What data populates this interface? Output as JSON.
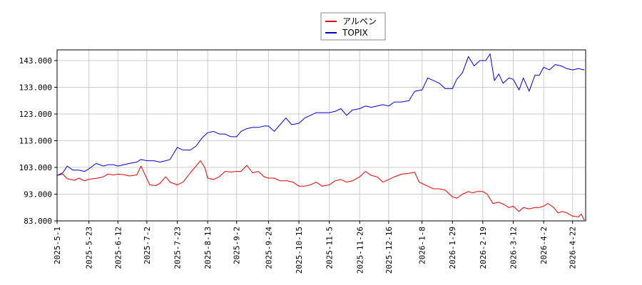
{
  "chart_data": {
    "type": "line",
    "title": "",
    "xlabel": "",
    "ylabel": "",
    "ylim": [
      83.0,
      147.0
    ],
    "y_ticks": [
      "83.000",
      "93.000",
      "103.000",
      "113.000",
      "123.000",
      "133.000",
      "143.000"
    ],
    "x_ticks": [
      "2025-5-1",
      "2025-5-23",
      "2025-6-12",
      "2025-7-2",
      "2025-7-23",
      "2025-8-13",
      "2025-9-2",
      "2025-9-24",
      "2025-10-15",
      "2025-11-5",
      "2025-11-26",
      "2025-12-16",
      "2026-1-8",
      "2026-1-29",
      "2026-2-19",
      "2026-3-12",
      "2026-4-2",
      "2026-4-22"
    ],
    "x_range": [
      "2025-5-1",
      "2026-5-1"
    ],
    "grid": true,
    "legend_position": "top-center",
    "series": [
      {
        "name": "アルペン",
        "color": "#dd0000",
        "points": [
          [
            "2025-5-1",
            100.0
          ],
          [
            "2025-5-5",
            100.5
          ],
          [
            "2025-5-8",
            98.8
          ],
          [
            "2025-5-13",
            98.2
          ],
          [
            "2025-5-16",
            99.0
          ],
          [
            "2025-5-20",
            98.0
          ],
          [
            "2025-5-23",
            98.6
          ],
          [
            "2025-5-28",
            98.9
          ],
          [
            "2025-6-2",
            99.5
          ],
          [
            "2025-6-5",
            100.5
          ],
          [
            "2025-6-9",
            100.2
          ],
          [
            "2025-6-12",
            100.5
          ],
          [
            "2025-6-16",
            100.3
          ],
          [
            "2025-6-20",
            99.8
          ],
          [
            "2025-6-25",
            100.2
          ],
          [
            "2025-6-28",
            103.5
          ],
          [
            "2025-7-1",
            100.0
          ],
          [
            "2025-7-4",
            96.5
          ],
          [
            "2025-7-8",
            96.2
          ],
          [
            "2025-7-11",
            97.0
          ],
          [
            "2025-7-15",
            99.5
          ],
          [
            "2025-7-18",
            97.5
          ],
          [
            "2025-7-23",
            96.5
          ],
          [
            "2025-7-27",
            97.5
          ],
          [
            "2025-8-1",
            101.0
          ],
          [
            "2025-8-5",
            103.5
          ],
          [
            "2025-8-8",
            105.5
          ],
          [
            "2025-8-11",
            103.0
          ],
          [
            "2025-8-13",
            99.0
          ],
          [
            "2025-8-17",
            98.5
          ],
          [
            "2025-8-21",
            99.5
          ],
          [
            "2025-8-25",
            101.5
          ],
          [
            "2025-8-29",
            101.3
          ],
          [
            "2025-9-2",
            101.5
          ],
          [
            "2025-9-5",
            101.5
          ],
          [
            "2025-9-9",
            103.8
          ],
          [
            "2025-9-13",
            101.0
          ],
          [
            "2025-9-17",
            101.5
          ],
          [
            "2025-9-21",
            99.5
          ],
          [
            "2025-9-24",
            99.0
          ],
          [
            "2025-9-28",
            99.0
          ],
          [
            "2025-10-2",
            98.0
          ],
          [
            "2025-10-7",
            98.0
          ],
          [
            "2025-10-11",
            97.5
          ],
          [
            "2025-10-15",
            96.0
          ],
          [
            "2025-10-19",
            96.0
          ],
          [
            "2025-10-23",
            96.5
          ],
          [
            "2025-10-27",
            97.5
          ],
          [
            "2025-10-31",
            96.0
          ],
          [
            "2025-11-5",
            96.5
          ],
          [
            "2025-11-9",
            98.0
          ],
          [
            "2025-11-13",
            98.5
          ],
          [
            "2025-11-17",
            97.5
          ],
          [
            "2025-11-21",
            98.0
          ],
          [
            "2025-11-26",
            99.5
          ],
          [
            "2025-11-30",
            101.5
          ],
          [
            "2025-12-4",
            100.0
          ],
          [
            "2025-12-8",
            99.5
          ],
          [
            "2025-12-12",
            97.5
          ],
          [
            "2025-12-16",
            98.5
          ],
          [
            "2025-12-20",
            99.5
          ],
          [
            "2025-12-25",
            100.5
          ],
          [
            "2025-12-30",
            100.8
          ],
          [
            "2026-1-3",
            101.2
          ],
          [
            "2026-1-6",
            97.5
          ],
          [
            "2026-1-8",
            97.0
          ],
          [
            "2026-1-12",
            96.0
          ],
          [
            "2026-1-16",
            95.0
          ],
          [
            "2026-1-20",
            95.0
          ],
          [
            "2026-1-24",
            94.5
          ],
          [
            "2026-1-29",
            92.0
          ],
          [
            "2026-2-1",
            91.5
          ],
          [
            "2026-2-5",
            93.0
          ],
          [
            "2026-2-9",
            94.0
          ],
          [
            "2026-2-12",
            93.5
          ],
          [
            "2026-2-15",
            94.0
          ],
          [
            "2026-2-19",
            94.0
          ],
          [
            "2026-2-22",
            93.0
          ],
          [
            "2026-2-26",
            89.5
          ],
          [
            "2026-3-2",
            90.0
          ],
          [
            "2026-3-6",
            89.0
          ],
          [
            "2026-3-9",
            88.0
          ],
          [
            "2026-3-12",
            88.5
          ],
          [
            "2026-3-16",
            86.5
          ],
          [
            "2026-3-19",
            88.0
          ],
          [
            "2026-3-23",
            87.5
          ],
          [
            "2026-3-27",
            88.0
          ],
          [
            "2026-3-30",
            88.0
          ],
          [
            "2026-4-2",
            88.5
          ],
          [
            "2026-4-5",
            89.5
          ],
          [
            "2026-4-9",
            88.0
          ],
          [
            "2026-4-12",
            86.0
          ],
          [
            "2026-4-15",
            86.5
          ],
          [
            "2026-4-18",
            86.0
          ],
          [
            "2026-4-22",
            84.8
          ],
          [
            "2026-4-26",
            84.5
          ],
          [
            "2026-4-28",
            85.5
          ],
          [
            "2026-4-30",
            83.3
          ]
        ]
      },
      {
        "name": "TOPIX",
        "color": "#0000cc",
        "points": [
          [
            "2025-5-1",
            100.0
          ],
          [
            "2025-5-5",
            101.0
          ],
          [
            "2025-5-8",
            103.5
          ],
          [
            "2025-5-12",
            102.0
          ],
          [
            "2025-5-16",
            102.0
          ],
          [
            "2025-5-20",
            101.5
          ],
          [
            "2025-5-23",
            102.5
          ],
          [
            "2025-5-28",
            104.5
          ],
          [
            "2025-6-2",
            103.5
          ],
          [
            "2025-6-5",
            104.0
          ],
          [
            "2025-6-9",
            104.0
          ],
          [
            "2025-6-12",
            103.5
          ],
          [
            "2025-6-16",
            104.0
          ],
          [
            "2025-6-20",
            104.5
          ],
          [
            "2025-6-25",
            105.0
          ],
          [
            "2025-6-28",
            106.0
          ],
          [
            "2025-7-2",
            105.5
          ],
          [
            "2025-7-7",
            105.5
          ],
          [
            "2025-7-11",
            105.0
          ],
          [
            "2025-7-15",
            105.5
          ],
          [
            "2025-7-18",
            106.0
          ],
          [
            "2025-7-23",
            110.5
          ],
          [
            "2025-7-27",
            109.5
          ],
          [
            "2025-8-1",
            109.5
          ],
          [
            "2025-8-5",
            111.0
          ],
          [
            "2025-8-9",
            114.0
          ],
          [
            "2025-8-13",
            116.0
          ],
          [
            "2025-8-17",
            116.5
          ],
          [
            "2025-8-21",
            115.5
          ],
          [
            "2025-8-25",
            115.5
          ],
          [
            "2025-8-29",
            114.5
          ],
          [
            "2025-9-2",
            114.5
          ],
          [
            "2025-9-5",
            116.5
          ],
          [
            "2025-9-9",
            117.5
          ],
          [
            "2025-9-13",
            118.0
          ],
          [
            "2025-9-17",
            118.0
          ],
          [
            "2025-9-21",
            118.5
          ],
          [
            "2025-9-24",
            118.5
          ],
          [
            "2025-9-28",
            116.5
          ],
          [
            "2025-10-2",
            119.0
          ],
          [
            "2025-10-6",
            121.5
          ],
          [
            "2025-10-10",
            119.0
          ],
          [
            "2025-10-15",
            119.5
          ],
          [
            "2025-10-19",
            121.5
          ],
          [
            "2025-10-23",
            122.5
          ],
          [
            "2025-10-27",
            123.5
          ],
          [
            "2025-10-31",
            123.5
          ],
          [
            "2025-11-5",
            123.5
          ],
          [
            "2025-11-9",
            124.0
          ],
          [
            "2025-11-13",
            125.0
          ],
          [
            "2025-11-17",
            122.5
          ],
          [
            "2025-11-21",
            124.5
          ],
          [
            "2025-11-26",
            125.0
          ],
          [
            "2025-11-30",
            126.0
          ],
          [
            "2025-12-4",
            125.5
          ],
          [
            "2025-12-8",
            126.0
          ],
          [
            "2025-12-12",
            126.5
          ],
          [
            "2025-12-16",
            126.0
          ],
          [
            "2025-12-20",
            127.5
          ],
          [
            "2025-12-25",
            127.5
          ],
          [
            "2025-12-30",
            128.0
          ],
          [
            "2026-1-3",
            131.5
          ],
          [
            "2026-1-8",
            132.0
          ],
          [
            "2026-1-12",
            136.5
          ],
          [
            "2026-1-16",
            135.5
          ],
          [
            "2026-1-20",
            134.5
          ],
          [
            "2026-1-24",
            132.5
          ],
          [
            "2026-1-29",
            132.5
          ],
          [
            "2026-2-1",
            136.0
          ],
          [
            "2026-2-5",
            138.5
          ],
          [
            "2026-2-9",
            144.5
          ],
          [
            "2026-2-13",
            141.0
          ],
          [
            "2026-2-17",
            143.0
          ],
          [
            "2026-2-21",
            143.0
          ],
          [
            "2026-2-24",
            145.5
          ],
          [
            "2026-2-27",
            135.5
          ],
          [
            "2026-3-2",
            138.0
          ],
          [
            "2026-3-5",
            134.5
          ],
          [
            "2026-3-9",
            136.5
          ],
          [
            "2026-3-12",
            136.0
          ],
          [
            "2026-3-16",
            132.0
          ],
          [
            "2026-3-19",
            136.5
          ],
          [
            "2026-3-23",
            131.5
          ],
          [
            "2026-3-27",
            137.5
          ],
          [
            "2026-3-30",
            137.5
          ],
          [
            "2026-4-2",
            140.5
          ],
          [
            "2026-4-6",
            139.5
          ],
          [
            "2026-4-10",
            141.5
          ],
          [
            "2026-4-14",
            141.0
          ],
          [
            "2026-4-18",
            140.0
          ],
          [
            "2026-4-22",
            139.5
          ],
          [
            "2026-4-26",
            140.0
          ],
          [
            "2026-4-30",
            139.5
          ]
        ]
      }
    ]
  }
}
